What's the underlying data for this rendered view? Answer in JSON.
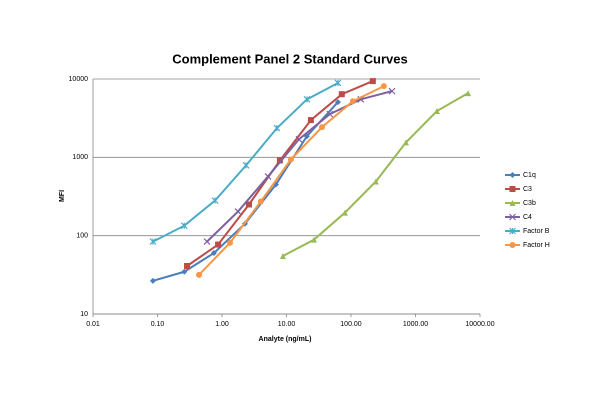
{
  "chart_data": {
    "type": "line",
    "title": "Complement Panel 2 Standard Curves",
    "xlabel": "Analyte (ng/mL)",
    "ylabel": "MFI",
    "xscale": "log",
    "yscale": "log",
    "xlim": [
      0.01,
      10000
    ],
    "ylim": [
      10,
      10000
    ],
    "xticks": [
      0.01,
      {
        "value": 0.1,
        "label": "0.10"
      },
      {
        "value": 1,
        "label": "1.00"
      },
      {
        "value": 10,
        "label": "10.00"
      },
      {
        "value": 100,
        "label": "100.00"
      },
      {
        "value": 1000,
        "label": "1000.00"
      },
      {
        "value": 10000,
        "label": "10000.00"
      }
    ],
    "yticks": [
      10,
      100,
      1000,
      10000
    ],
    "grid": true,
    "legend": "right",
    "series": [
      {
        "name": "C1q",
        "color": "#4a7ebb",
        "marker": "diamond",
        "x": [
          0.085,
          0.26,
          0.75,
          2.27,
          6.86,
          20.7,
          62.7
        ],
        "values": [
          26.5,
          34.6,
          60,
          142,
          450,
          1860,
          5070
        ]
      },
      {
        "name": "C3",
        "color": "#be4b48",
        "marker": "square",
        "x": [
          0.287,
          0.87,
          2.62,
          7.9,
          23.9,
          72,
          218
        ],
        "values": [
          41,
          77,
          250,
          912,
          2990,
          6400,
          9400
        ]
      },
      {
        "name": "C3b",
        "color": "#98b954",
        "marker": "triangle",
        "x": [
          8.8,
          26.7,
          80.6,
          243,
          711,
          2150,
          6530
        ],
        "values": [
          55,
          89,
          197,
          492,
          1550,
          3900,
          6600
        ]
      },
      {
        "name": "C4",
        "color": "#7d60a0",
        "marker": "cross",
        "x": [
          0.585,
          1.77,
          5.17,
          15.6,
          47,
          142,
          432
        ],
        "values": [
          84,
          203,
          570,
          1700,
          3560,
          5500,
          7000
        ]
      },
      {
        "name": "Factor B",
        "color": "#4bacc6",
        "marker": "star",
        "x": [
          0.085,
          0.26,
          0.78,
          2.36,
          7.1,
          20.8,
          62.7
        ],
        "values": [
          84,
          134,
          281,
          790,
          2360,
          5500,
          8900
        ]
      },
      {
        "name": "Factor H",
        "color": "#f79646",
        "marker": "circle",
        "x": [
          0.44,
          1.33,
          4.0,
          11.7,
          35.5,
          107,
          323
        ],
        "values": [
          31.6,
          81,
          273,
          940,
          2430,
          5200,
          8100
        ]
      }
    ]
  }
}
